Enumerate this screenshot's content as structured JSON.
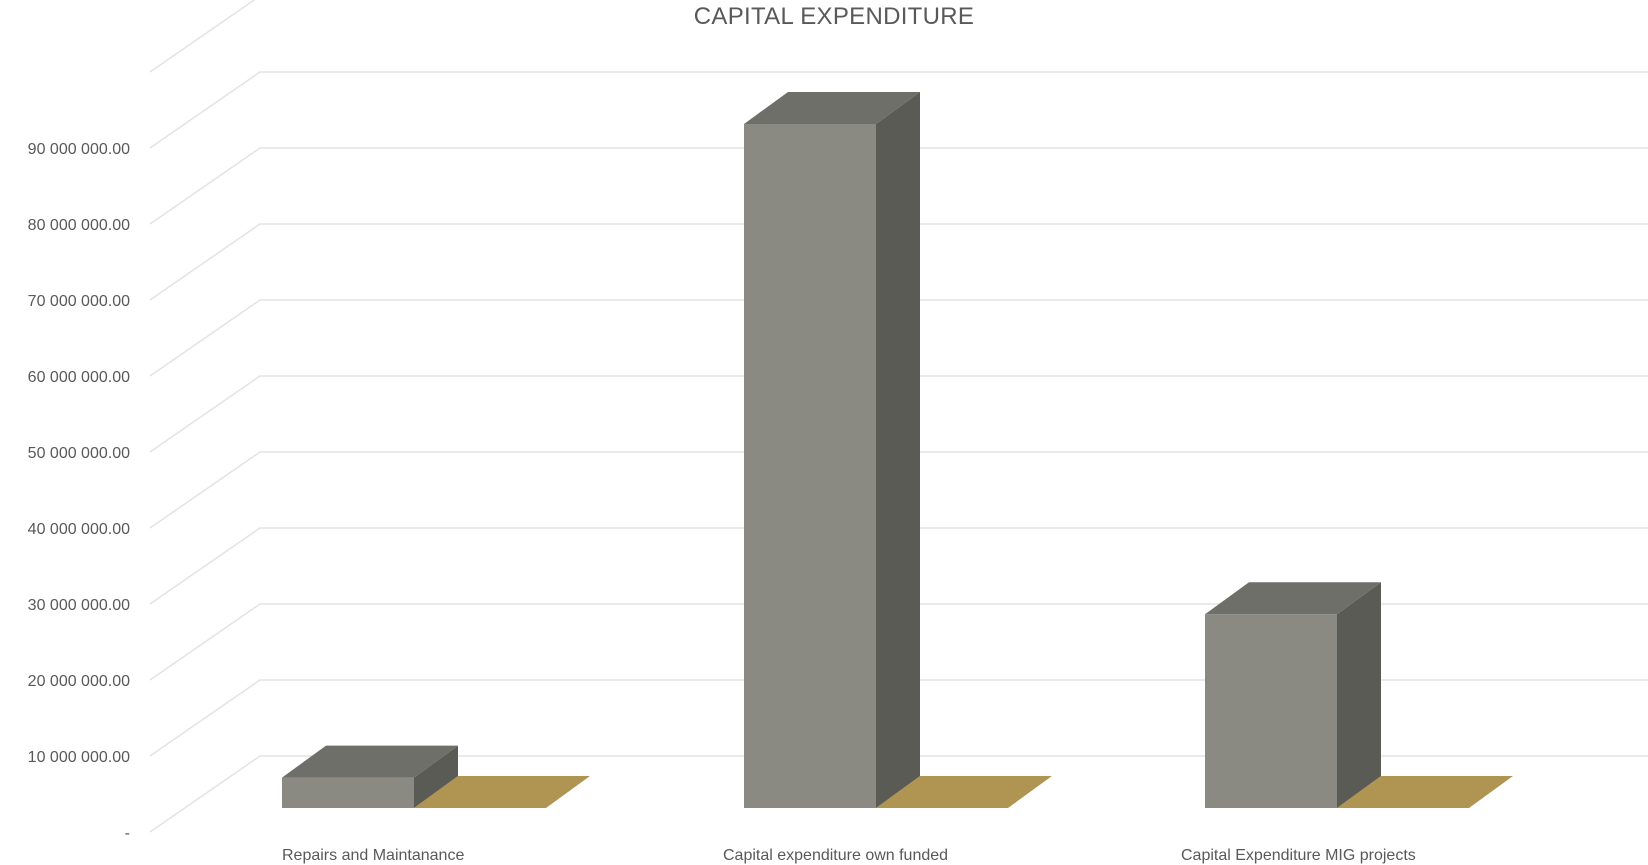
{
  "chart_data": {
    "type": "bar",
    "title": "CAPITAL EXPENDITURE",
    "xlabel": "",
    "ylabel": "",
    "categories": [
      "Repairs and Maintanance",
      "Capital expenditure own funded",
      "Capital Expenditure MIG projects"
    ],
    "series": [
      {
        "values": [
          4000000,
          90000000,
          25500000
        ],
        "color": "#8a8a82"
      },
      {
        "values": [
          0,
          0,
          0
        ],
        "color": "#b09452"
      }
    ],
    "ylim": [
      0,
      100000000
    ],
    "yticks": [
      0,
      10000000,
      20000000,
      30000000,
      40000000,
      50000000,
      60000000,
      70000000,
      80000000,
      90000000
    ],
    "ytick_labels": [
      "-",
      "10 000 000.00",
      "20 000 000.00",
      "30 000 000.00",
      "40 000 000.00",
      "50 000 000.00",
      "60 000 000.00",
      "70 000 000.00",
      "80 000 000.00",
      "90 000 000.00"
    ],
    "grid": true,
    "legend": "none",
    "style": "3d-column"
  }
}
